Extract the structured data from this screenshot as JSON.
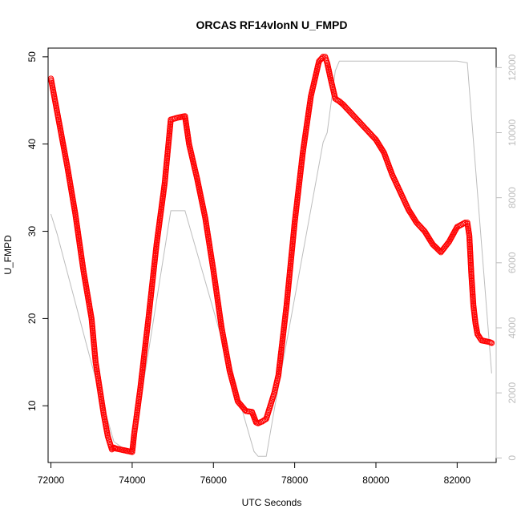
{
  "chart_data": {
    "type": "scatter",
    "title": "ORCAS RF14vlonN U_FMPD",
    "xlabel": "UTC Seconds",
    "ylabel": "U_FMPD",
    "xlim": [
      71930,
      82960
    ],
    "ylim": [
      3.5,
      51.0
    ],
    "y2lim": [
      -140,
      12600
    ],
    "x_ticks": [
      72000,
      74000,
      76000,
      78000,
      80000,
      82000
    ],
    "y_ticks": [
      10,
      20,
      30,
      40,
      50
    ],
    "y2_ticks": [
      0,
      2000,
      4000,
      6000,
      8000,
      10000,
      12000
    ],
    "series": [
      {
        "role": "primary",
        "marker": "open-circle",
        "color": "#ff0000",
        "x": [
          72000,
          72100,
          72200,
          72400,
          72600,
          72800,
          73000,
          73100,
          73200,
          73300,
          73400,
          73500,
          73550,
          73600,
          73800,
          74000,
          74020,
          74050,
          74100,
          74200,
          74400,
          74600,
          74800,
          74950,
          75100,
          75300,
          75400,
          75600,
          75800,
          76000,
          76200,
          76400,
          76600,
          76800,
          76950,
          77050,
          77100,
          77200,
          77300,
          77400,
          77500,
          77600,
          77800,
          78000,
          78200,
          78400,
          78600,
          78700,
          78750,
          78800,
          78900,
          79000,
          79100,
          79200,
          79400,
          79600,
          79800,
          80000,
          80200,
          80400,
          80600,
          80800,
          81000,
          81200,
          81400,
          81600,
          81800,
          82000,
          82200,
          82250,
          82300,
          82350,
          82400,
          82450,
          82500,
          82600,
          82700,
          82800,
          82850
        ],
        "y": [
          47.5,
          45.0,
          42.5,
          37.5,
          32.0,
          25.5,
          20.0,
          15.0,
          12.0,
          9.0,
          6.5,
          5.0,
          5.2,
          5.1,
          4.9,
          4.7,
          5.5,
          6.8,
          8.5,
          12.0,
          20.0,
          28.5,
          35.5,
          42.8,
          43.0,
          43.2,
          40.0,
          36.0,
          31.5,
          25.5,
          19.0,
          14.0,
          10.5,
          9.4,
          9.3,
          8.1,
          8.0,
          8.2,
          8.5,
          10.0,
          11.5,
          13.5,
          21.5,
          31.0,
          39.0,
          45.5,
          49.5,
          50.0,
          50.0,
          49.3,
          47.2,
          45.2,
          44.9,
          44.5,
          43.5,
          42.5,
          41.5,
          40.5,
          39.0,
          36.5,
          34.5,
          32.5,
          31.0,
          30.0,
          28.5,
          27.6,
          28.8,
          30.5,
          31.0,
          31.0,
          29.5,
          25.0,
          21.5,
          19.5,
          18.2,
          17.5,
          17.4,
          17.3,
          17.2
        ]
      },
      {
        "role": "secondary",
        "color": "#bdbdbd",
        "x": [
          72000,
          72150,
          73000,
          73550,
          74000,
          74950,
          75300,
          77000,
          77100,
          77300,
          77500,
          78700,
          78800,
          79000,
          79100,
          80000,
          81000,
          82000,
          82250,
          82850
        ],
        "y": [
          7500,
          6900,
          2900,
          500,
          100,
          7600,
          7600,
          200,
          50,
          50,
          1500,
          9700,
          10000,
          11900,
          12200,
          12200,
          12200,
          12200,
          12150,
          2600
        ]
      }
    ]
  }
}
